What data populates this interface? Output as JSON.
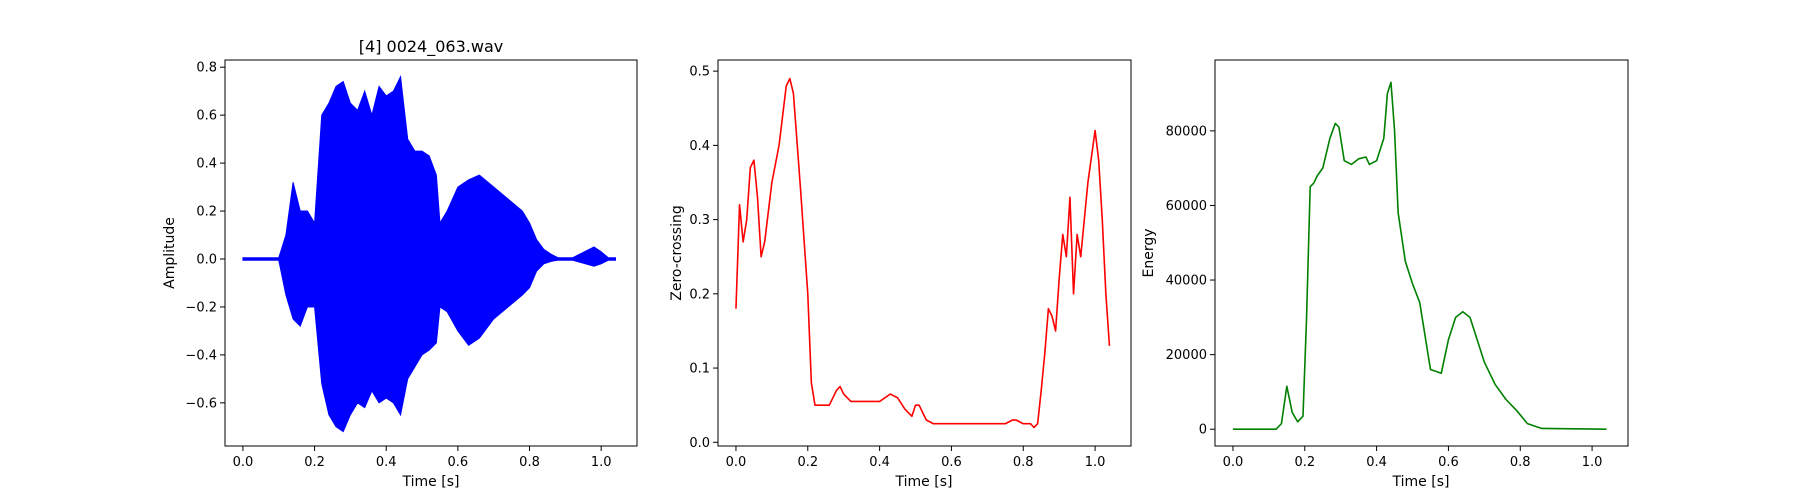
{
  "chart_data": [
    {
      "type": "line",
      "title": "[4] 0024_063.wav",
      "xlabel": "Time [s]",
      "ylabel": "Amplitude",
      "color": "#0000ff",
      "xlim": [
        -0.05,
        1.1
      ],
      "ylim": [
        -0.78,
        0.83
      ],
      "xticks": [
        "0.0",
        "0.2",
        "0.4",
        "0.6",
        "0.8",
        "1.0"
      ],
      "yticks": [
        "−0.6",
        "−0.4",
        "−0.2",
        "0.0",
        "0.2",
        "0.4",
        "0.6",
        "0.8"
      ],
      "envelope_time": [
        0.0,
        0.1,
        0.12,
        0.14,
        0.16,
        0.18,
        0.2,
        0.22,
        0.24,
        0.26,
        0.28,
        0.3,
        0.32,
        0.34,
        0.36,
        0.38,
        0.4,
        0.42,
        0.44,
        0.46,
        0.48,
        0.5,
        0.52,
        0.54,
        0.55,
        0.57,
        0.6,
        0.63,
        0.66,
        0.7,
        0.74,
        0.78,
        0.8,
        0.82,
        0.84,
        0.86,
        0.88,
        0.9,
        0.92,
        0.98,
        1.0,
        1.02,
        1.04
      ],
      "envelope_upper": [
        0.005,
        0.005,
        0.1,
        0.32,
        0.2,
        0.2,
        0.15,
        0.6,
        0.65,
        0.72,
        0.74,
        0.65,
        0.62,
        0.7,
        0.6,
        0.72,
        0.68,
        0.7,
        0.76,
        0.5,
        0.45,
        0.45,
        0.43,
        0.35,
        0.15,
        0.2,
        0.3,
        0.33,
        0.35,
        0.3,
        0.25,
        0.2,
        0.15,
        0.08,
        0.04,
        0.02,
        0.005,
        0.005,
        0.005,
        0.05,
        0.03,
        0.005,
        0.005
      ],
      "envelope_lower": [
        -0.005,
        -0.005,
        -0.15,
        -0.25,
        -0.28,
        -0.2,
        -0.2,
        -0.52,
        -0.65,
        -0.7,
        -0.72,
        -0.65,
        -0.6,
        -0.62,
        -0.55,
        -0.6,
        -0.58,
        -0.6,
        -0.65,
        -0.5,
        -0.45,
        -0.4,
        -0.38,
        -0.35,
        -0.2,
        -0.22,
        -0.3,
        -0.36,
        -0.33,
        -0.25,
        -0.2,
        -0.15,
        -0.12,
        -0.05,
        -0.02,
        -0.01,
        -0.005,
        -0.005,
        -0.005,
        -0.03,
        -0.02,
        -0.005,
        -0.005
      ]
    },
    {
      "type": "line",
      "title": "",
      "xlabel": "Time [s]",
      "ylabel": "Zero-crossing",
      "color": "#ff0000",
      "xlim": [
        -0.05,
        1.1
      ],
      "ylim": [
        -0.005,
        0.515
      ],
      "xticks": [
        "0.0",
        "0.2",
        "0.4",
        "0.6",
        "0.8",
        "1.0"
      ],
      "yticks": [
        "0.0",
        "0.1",
        "0.2",
        "0.3",
        "0.4",
        "0.5"
      ],
      "x": [
        0.0,
        0.01,
        0.02,
        0.03,
        0.04,
        0.05,
        0.06,
        0.07,
        0.08,
        0.1,
        0.12,
        0.14,
        0.15,
        0.16,
        0.18,
        0.2,
        0.21,
        0.22,
        0.24,
        0.26,
        0.28,
        0.29,
        0.3,
        0.32,
        0.34,
        0.36,
        0.4,
        0.43,
        0.45,
        0.47,
        0.49,
        0.5,
        0.51,
        0.52,
        0.53,
        0.55,
        0.6,
        0.7,
        0.75,
        0.77,
        0.78,
        0.8,
        0.82,
        0.83,
        0.84,
        0.85,
        0.86,
        0.87,
        0.88,
        0.89,
        0.9,
        0.91,
        0.92,
        0.93,
        0.94,
        0.95,
        0.96,
        0.98,
        1.0,
        1.01,
        1.02,
        1.03,
        1.04
      ],
      "y": [
        0.18,
        0.32,
        0.27,
        0.3,
        0.37,
        0.38,
        0.33,
        0.25,
        0.27,
        0.35,
        0.4,
        0.48,
        0.49,
        0.47,
        0.34,
        0.2,
        0.08,
        0.05,
        0.05,
        0.05,
        0.07,
        0.075,
        0.065,
        0.055,
        0.055,
        0.055,
        0.055,
        0.065,
        0.06,
        0.045,
        0.035,
        0.05,
        0.05,
        0.04,
        0.03,
        0.025,
        0.025,
        0.025,
        0.025,
        0.03,
        0.03,
        0.025,
        0.025,
        0.02,
        0.025,
        0.07,
        0.12,
        0.18,
        0.17,
        0.15,
        0.22,
        0.28,
        0.25,
        0.33,
        0.2,
        0.28,
        0.25,
        0.35,
        0.42,
        0.38,
        0.3,
        0.2,
        0.13
      ]
    },
    {
      "type": "line",
      "title": "",
      "xlabel": "Time [s]",
      "ylabel": "Energy",
      "color": "#008000",
      "xlim": [
        -0.05,
        1.1
      ],
      "ylim": [
        -4500,
        99000
      ],
      "xticks": [
        "0.0",
        "0.2",
        "0.4",
        "0.6",
        "0.8",
        "1.0"
      ],
      "yticks": [
        "0",
        "20000",
        "40000",
        "60000",
        "80000"
      ],
      "x": [
        0.0,
        0.12,
        0.135,
        0.15,
        0.165,
        0.18,
        0.195,
        0.205,
        0.215,
        0.225,
        0.235,
        0.25,
        0.27,
        0.285,
        0.295,
        0.31,
        0.33,
        0.35,
        0.37,
        0.38,
        0.4,
        0.42,
        0.43,
        0.44,
        0.45,
        0.46,
        0.48,
        0.5,
        0.52,
        0.535,
        0.55,
        0.58,
        0.6,
        0.62,
        0.64,
        0.66,
        0.68,
        0.7,
        0.73,
        0.76,
        0.79,
        0.82,
        0.86,
        1.04
      ],
      "y": [
        0,
        0,
        1500,
        11500,
        4500,
        2000,
        3500,
        30000,
        65000,
        66000,
        68000,
        70000,
        78000,
        82000,
        81000,
        72000,
        71000,
        72500,
        73000,
        71000,
        72000,
        78000,
        90000,
        93000,
        80000,
        58000,
        45000,
        39000,
        34000,
        25000,
        16000,
        15000,
        24000,
        30000,
        31500,
        30000,
        24000,
        18000,
        12000,
        8000,
        5000,
        1500,
        200,
        0
      ]
    }
  ]
}
